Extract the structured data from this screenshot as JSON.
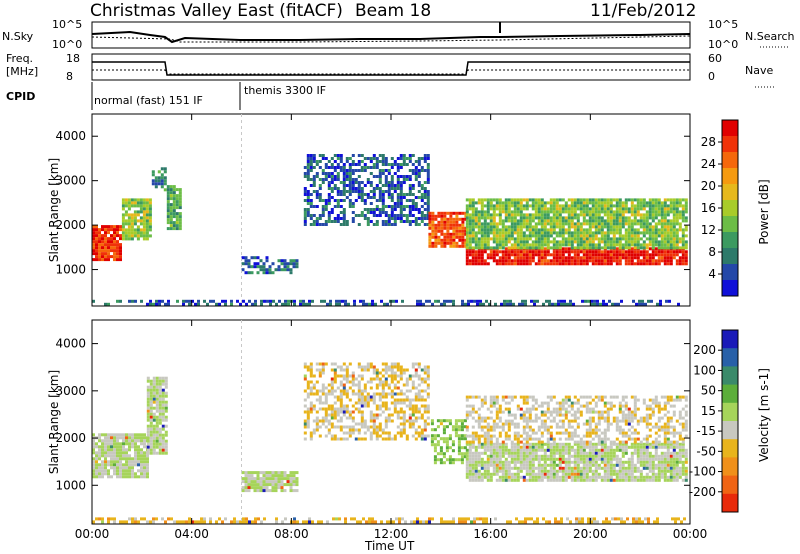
{
  "header": {
    "title": "Christmas Valley East (fitACF)",
    "beam": "Beam 18",
    "date": "11/Feb/2012"
  },
  "top_panels": {
    "nsky_label": "N.Sky",
    "nsky_ticks": [
      "10^5",
      "10^0"
    ],
    "nsearch_label": "N.Search",
    "nsearch_ticks": [
      "10^5",
      "10^0"
    ],
    "freq_label_1": "Freq.",
    "freq_label_2": "[MHz]",
    "freq_ticks": [
      "18",
      "8"
    ],
    "nave_label": "Nave",
    "nave_ticks": [
      "60",
      "0"
    ],
    "cpid_label": "CPID",
    "cpid_segments": [
      "normal (fast) 151 IF",
      "themis 3300 IF"
    ]
  },
  "legends": {
    "power": {
      "label": "Power [dB]",
      "ticks": [
        "4",
        "8",
        "12",
        "16",
        "20",
        "24",
        "28"
      ],
      "colors": [
        "#1010d8",
        "#2448a8",
        "#2d7a6a",
        "#3c9a60",
        "#6cbd46",
        "#a8cc2a",
        "#e6b81c",
        "#f59a10",
        "#f5680c",
        "#f03208",
        "#e00000"
      ]
    },
    "velocity": {
      "label": "Velocity [m s-1]",
      "ticks": [
        "200",
        "100",
        "50",
        "15",
        "-15",
        "-50",
        "-100",
        "-200"
      ],
      "colors": [
        "#1a1ab8",
        "#2860a8",
        "#3a8a6a",
        "#5cae3a",
        "#a6d45a",
        "#c8c8c0",
        "#e8b41c",
        "#f0901a",
        "#f06414",
        "#e82a0a"
      ]
    }
  },
  "chart_data": [
    {
      "type": "heatmap",
      "title": "Power [dB]",
      "xlabel": "Time UT",
      "ylabel": "Slant Range [km]",
      "x_ticks": [
        "00:00",
        "04:00",
        "08:00",
        "12:00",
        "16:00",
        "20:00",
        "00:00"
      ],
      "y_ticks": [
        "1000",
        "2000",
        "3000",
        "4000"
      ],
      "xlim": [
        0,
        24
      ],
      "ylim": [
        180,
        4500
      ],
      "scale": [
        0,
        30
      ],
      "regions": [
        {
          "t": [
            0.0,
            1.2
          ],
          "r": [
            1200,
            2000
          ],
          "v": 26
        },
        {
          "t": [
            1.2,
            2.4
          ],
          "r": [
            1700,
            2600
          ],
          "v": 14
        },
        {
          "t": [
            2.4,
            3.0
          ],
          "r": [
            2800,
            3300
          ],
          "v": 8
        },
        {
          "t": [
            3.0,
            3.5
          ],
          "r": [
            1900,
            2900
          ],
          "v": 10
        },
        {
          "t": [
            6.0,
            8.2
          ],
          "r": [
            900,
            1300
          ],
          "v": 6
        },
        {
          "t": [
            8.5,
            13.5
          ],
          "r": [
            2000,
            3600
          ],
          "v": 5
        },
        {
          "t": [
            13.5,
            15.0
          ],
          "r": [
            1500,
            2300
          ],
          "v": 24
        },
        {
          "t": [
            15.0,
            23.8
          ],
          "r": [
            1100,
            1500
          ],
          "v": 28
        },
        {
          "t": [
            15.0,
            23.8
          ],
          "r": [
            1500,
            2600
          ],
          "v": 13
        },
        {
          "t": [
            0.0,
            24.0
          ],
          "r": [
            200,
            320
          ],
          "v": 5
        }
      ]
    },
    {
      "type": "heatmap",
      "title": "Velocity [m s-1]",
      "xlabel": "Time UT",
      "ylabel": "Slant Range [km]",
      "x_ticks": [
        "00:00",
        "04:00",
        "08:00",
        "12:00",
        "16:00",
        "20:00",
        "00:00"
      ],
      "y_ticks": [
        "1000",
        "2000",
        "3000",
        "4000"
      ],
      "xlim": [
        0,
        24
      ],
      "ylim": [
        180,
        4500
      ],
      "scale": [
        -200,
        200
      ],
      "regions": [
        {
          "t": [
            0.0,
            2.2
          ],
          "r": [
            1200,
            2100
          ],
          "v": 0
        },
        {
          "t": [
            2.2,
            3.0
          ],
          "r": [
            1700,
            3300
          ],
          "v": 0
        },
        {
          "t": [
            6.0,
            8.2
          ],
          "r": [
            900,
            1300
          ],
          "v": 0
        },
        {
          "t": [
            8.5,
            13.5
          ],
          "r": [
            2000,
            3600
          ],
          "v": -40
        },
        {
          "t": [
            13.6,
            15.0
          ],
          "r": [
            1500,
            2400
          ],
          "v": 40
        },
        {
          "t": [
            15.0,
            23.8
          ],
          "r": [
            1100,
            1900
          ],
          "v": 0
        },
        {
          "t": [
            15.0,
            23.8
          ],
          "r": [
            1900,
            2900
          ],
          "v": -30
        },
        {
          "t": [
            0.0,
            24.0
          ],
          "r": [
            200,
            320
          ],
          "v": -60
        }
      ]
    }
  ]
}
